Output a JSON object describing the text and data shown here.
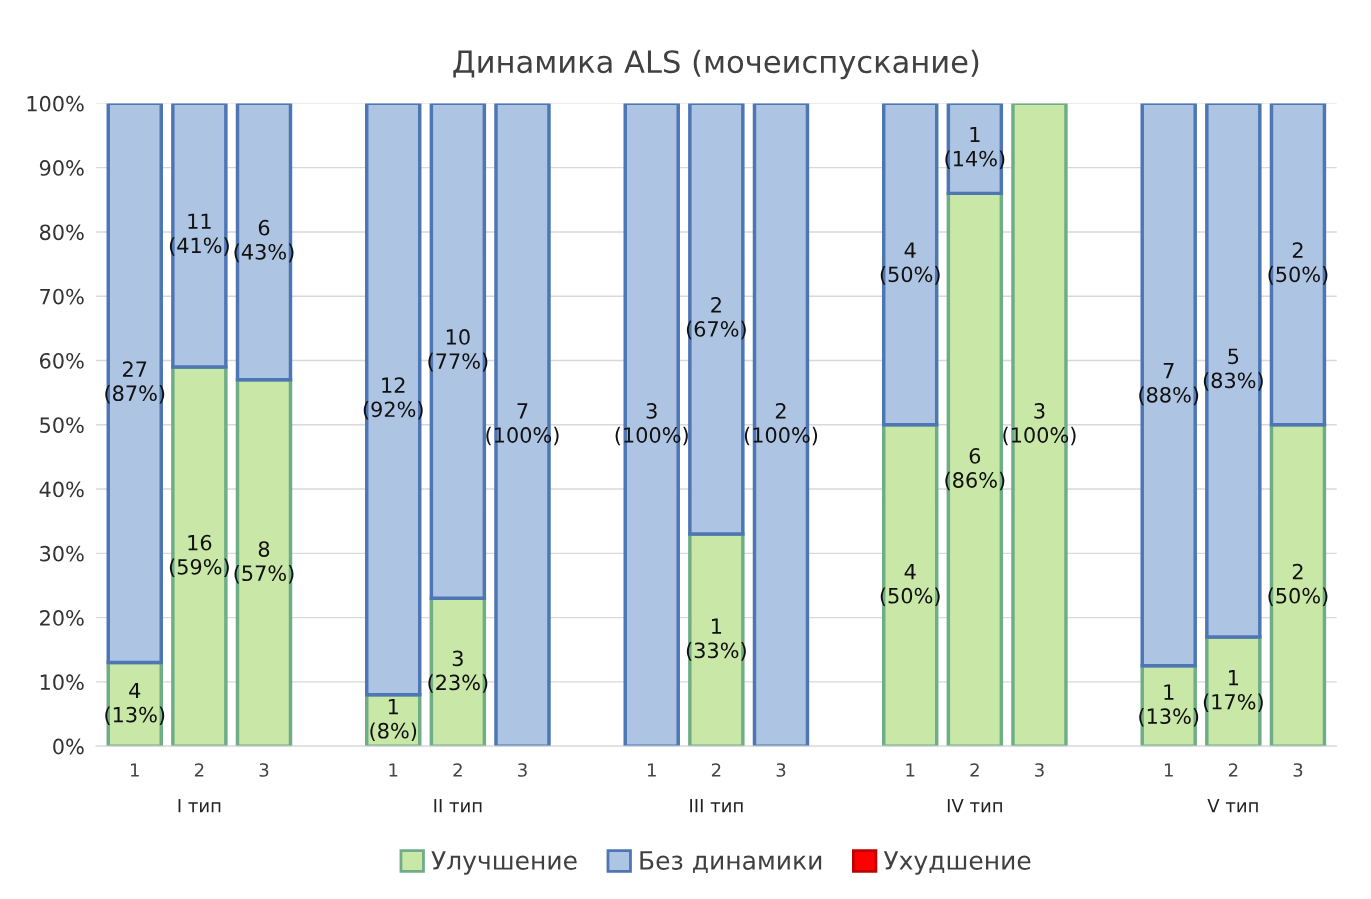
{
  "chart_data": {
    "type": "bar",
    "stacked": true,
    "title": "Динамика ALS (мочеиспускание)",
    "categories": [
      "1",
      "2",
      "3",
      null,
      "1",
      "2",
      "3",
      null,
      "1",
      "2",
      "3",
      null,
      "1",
      "2",
      "3",
      null,
      "1",
      "2",
      "3"
    ],
    "annotations": [
      "I тип",
      "II тип",
      "III тип",
      "IV тип",
      "V тип"
    ],
    "series": [
      {
        "name": "Улучшение",
        "color": "#c9e7a7",
        "values": [
          13,
          59,
          57,
          null,
          8,
          23,
          0,
          null,
          0,
          33,
          0,
          null,
          50,
          86,
          100,
          null,
          12.5,
          17,
          50
        ],
        "value_labels": [
          "4\n(13%)",
          "16\n(59%)",
          "8\n(57%)",
          null,
          "1\n(8%)",
          "3\n(23%)",
          null,
          null,
          null,
          "1\n(33%)",
          null,
          null,
          "4\n(50%)",
          "6\n(86%)",
          "3\n(100%)",
          null,
          "1\n(13%)",
          "1\n(17%)",
          "2\n(50%)"
        ]
      },
      {
        "name": "Без динамики",
        "color": "#adc4e2",
        "values": [
          87,
          41,
          43,
          null,
          92,
          77,
          100,
          null,
          100,
          67,
          100,
          null,
          50,
          14,
          0,
          null,
          87.5,
          83,
          50
        ],
        "value_labels": [
          "27\n(87%)",
          "11\n(41%)",
          "6\n(43%)",
          null,
          "12\n(92%)",
          "10\n(77%)",
          "7\n(100%)",
          null,
          "3\n(100%)",
          "2\n(67%)",
          "2\n(100%)",
          null,
          "4\n(50%)",
          "1\n(14%)",
          null,
          null,
          "7\n(88%)",
          "5\n(83%)",
          "2\n(50%)"
        ]
      },
      {
        "name": "Ухудшение",
        "color": "#ff0000",
        "values": [
          null,
          null,
          null,
          null,
          null,
          null,
          null,
          null,
          null,
          null,
          null,
          null,
          null,
          null,
          null,
          null,
          null,
          null,
          null
        ]
      }
    ],
    "ylim": [
      0,
      100
    ],
    "yticks": [
      {
        "value": 0,
        "label": "0%"
      },
      {
        "value": 10,
        "label": "10%"
      },
      {
        "value": 20,
        "label": "20%"
      },
      {
        "value": 30,
        "label": "30%"
      },
      {
        "value": 40,
        "label": "40%"
      },
      {
        "value": 50,
        "label": "50%"
      },
      {
        "value": 60,
        "label": "60%"
      },
      {
        "value": 70,
        "label": "70%"
      },
      {
        "value": 80,
        "label": "80%"
      },
      {
        "value": 90,
        "label": "90%"
      },
      {
        "value": 100,
        "label": "100%"
      }
    ],
    "grid": "y",
    "legend": "bottom"
  }
}
